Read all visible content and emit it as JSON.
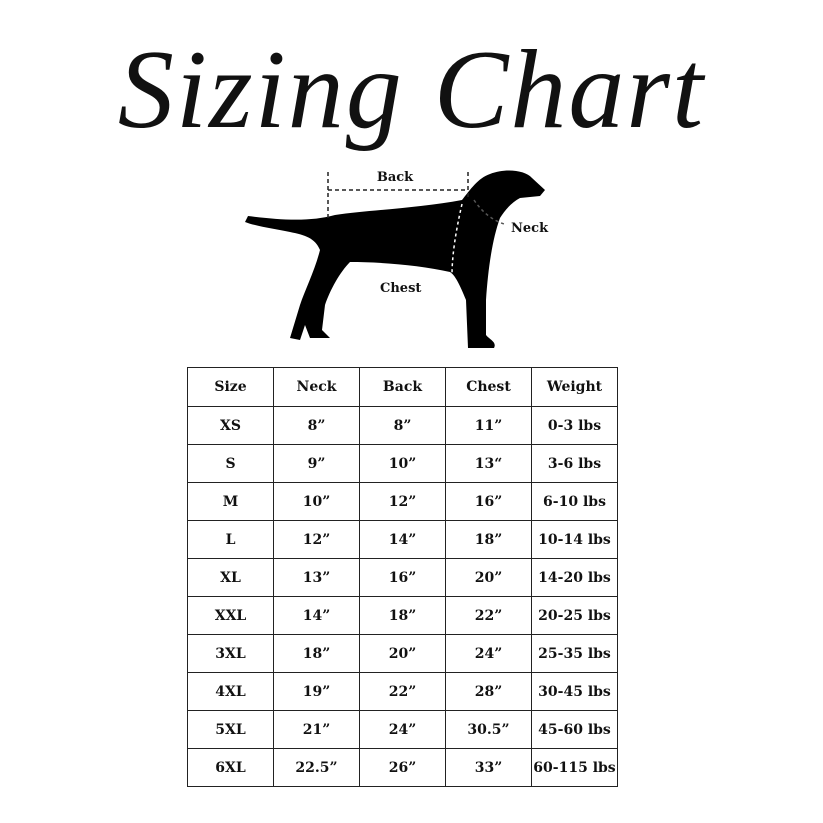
{
  "header": {
    "title": "Sizing Chart"
  },
  "diagram": {
    "back_label": "Back",
    "neck_label": "Neck",
    "chest_label": "Chest"
  },
  "table": {
    "columns": [
      "Size",
      "Neck",
      "Back",
      "Chest",
      "Weight"
    ],
    "rows": [
      [
        "XS",
        "8”",
        "8”",
        "11”",
        "0-3 lbs"
      ],
      [
        "S",
        "9”",
        "10”",
        "13“",
        "3-6 lbs"
      ],
      [
        "M",
        "10”",
        "12”",
        "16”",
        "6-10 lbs"
      ],
      [
        "L",
        "12”",
        "14”",
        "18”",
        "10-14 lbs"
      ],
      [
        "XL",
        "13”",
        "16”",
        "20”",
        "14-20 lbs"
      ],
      [
        "XXL",
        "14”",
        "18”",
        "22”",
        "20-25 lbs"
      ],
      [
        "3XL",
        "18”",
        "20”",
        "24”",
        "25-35 lbs"
      ],
      [
        "4XL",
        "19”",
        "22”",
        "28”",
        "30-45 lbs"
      ],
      [
        "5XL",
        "21”",
        "24”",
        "30.5”",
        "45-60 lbs"
      ],
      [
        "6XL",
        "22.5”",
        "26”",
        "33”",
        "60-115 lbs"
      ]
    ]
  }
}
